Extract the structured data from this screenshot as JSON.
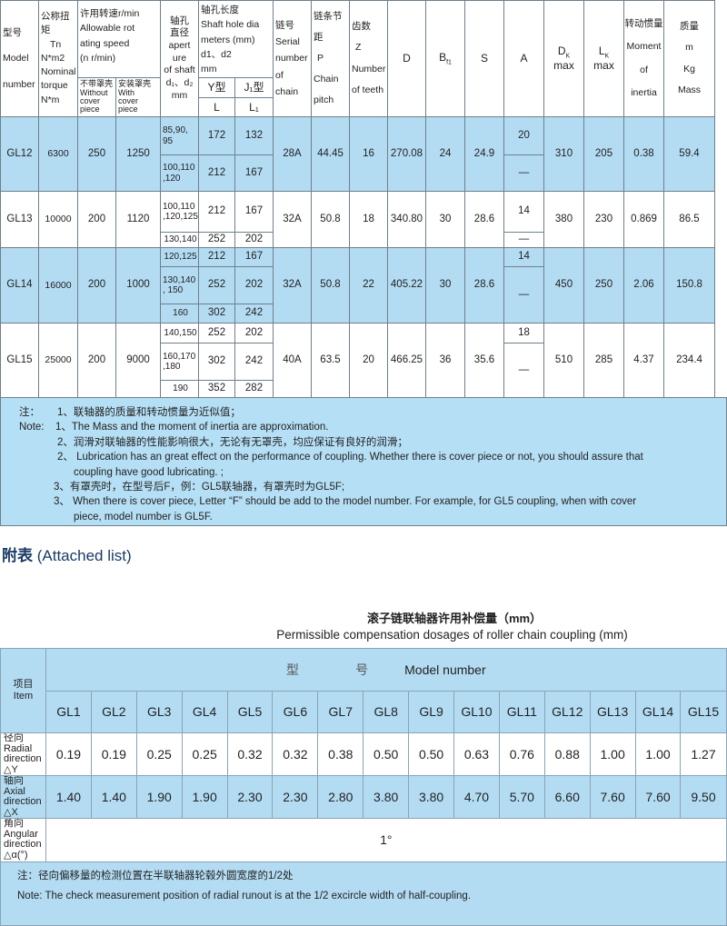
{
  "table1": {
    "header": {
      "model": [
        "型号",
        "Model",
        "number"
      ],
      "torque": [
        "公称扭矩",
        "Tn",
        "N*m2",
        "Nominal",
        "torque",
        "N*m"
      ],
      "speed": [
        "许用转速r/min",
        "Allowable rot",
        "ating speed",
        "(n  r/min)"
      ],
      "speed_without": [
        "不带罩壳",
        "Without",
        "cover",
        "piece"
      ],
      "speed_with": [
        "安装罩壳",
        "With",
        "cover",
        "piece"
      ],
      "aperture": [
        "轴孔",
        "直径",
        "apert",
        "ure",
        "of shaft",
        "d₁、d₂",
        "mm"
      ],
      "shaft_len": [
        "轴孔长度",
        "Shaft hole dia",
        "meters (mm)",
        "d1、d2",
        "mm"
      ],
      "y_type": "Y型",
      "j_type": "J₁型",
      "L": "L",
      "L1": "L₁",
      "chain": [
        "链号",
        "Serial",
        "number",
        "of",
        "chain"
      ],
      "pitch": [
        "链条节距",
        "P",
        "Chain",
        "pitch"
      ],
      "teeth": [
        "齿数",
        "Z",
        "Number",
        "of teeth"
      ],
      "D": "D",
      "B": {
        "main": "B",
        "sub": "f1"
      },
      "S": "S",
      "A": "A",
      "Dk": {
        "main": "D",
        "sub": "K",
        "line2": "max"
      },
      "Lk": {
        "main": "L",
        "sub": "K",
        "line2": "max"
      },
      "inertia": [
        "转动惯量",
        "Moment of",
        "inertia"
      ],
      "mass": [
        "质量",
        "m",
        "Kg",
        "Mass"
      ]
    },
    "rows": [
      {
        "model": "GL12",
        "torque": "6300",
        "speed_without": "250",
        "speed_with": "1250",
        "shafts": [
          {
            "d": "85,90,\n95",
            "L": "172",
            "L1": "132"
          },
          {
            "d": "100,110\n,120",
            "L": "212",
            "L1": "167"
          }
        ],
        "chain": "28A",
        "pitch": "44.45",
        "teeth": "16",
        "D": "270.08",
        "B": "24",
        "S": "24.9",
        "A": [
          "20",
          "—"
        ],
        "Dk": "310",
        "Lk": "205",
        "inertia": "0.38",
        "mass": "59.4"
      },
      {
        "model": "GL13",
        "torque": "10000",
        "speed_without": "200",
        "speed_with": "1120",
        "shafts": [
          {
            "d": "100,110\n,120,125",
            "L": "212",
            "L1": "167"
          },
          {
            "d": "130,140",
            "L": "252",
            "L1": "202"
          }
        ],
        "chain": "32A",
        "pitch": "50.8",
        "teeth": "18",
        "D": "340.80",
        "B": "30",
        "S": "28.6",
        "A": [
          "14",
          "—"
        ],
        "Dk": "380",
        "Lk": "230",
        "inertia": "0.869",
        "mass": "86.5"
      },
      {
        "model": "GL14",
        "torque": "16000",
        "speed_without": "200",
        "speed_with": "1000",
        "shafts": [
          {
            "d": "120,125",
            "L": "212",
            "L1": "167"
          },
          {
            "d": "130,140\n, 150",
            "L": "252",
            "L1": "202"
          },
          {
            "d": "160",
            "L": "302",
            "L1": "242"
          }
        ],
        "chain": "32A",
        "pitch": "50.8",
        "teeth": "22",
        "D": "405.22",
        "B": "30",
        "S": "28.6",
        "A": [
          "14",
          "—"
        ],
        "Dk": "450",
        "Lk": "250",
        "inertia": "2.06",
        "mass": "150.8"
      },
      {
        "model": "GL15",
        "torque": "25000",
        "speed_without": "200",
        "speed_with": "9000",
        "shafts": [
          {
            "d": "140,150",
            "L": "252",
            "L1": "202"
          },
          {
            "d": "160,170\n,180",
            "L": "302",
            "L1": "242"
          },
          {
            "d": "190",
            "L": "352",
            "L1": "282"
          }
        ],
        "chain": "40A",
        "pitch": "63.5",
        "teeth": "20",
        "D": "466.25",
        "B": "36",
        "S": "35.6",
        "A": [
          "18",
          "—"
        ],
        "Dk": "510",
        "Lk": "285",
        "inertia": "4.37",
        "mass": "234.4"
      }
    ]
  },
  "notes": {
    "label_cn": "注：",
    "label_en": "Note:",
    "lines": [
      "1、联轴器的质量和转动惯量为近似值；",
      "1、The Mass and the moment of inertia are approximation.",
      "2、润滑对联轴器的性能影响很大，无论有无罩壳，均应保证有良好的润滑；",
      "2、 Lubrication has an great effect on the performance of coupling. Whether there is cover piece or not, you should assure that",
      "coupling have good lubricating. ;",
      "3、有罩壳时，在型号后F，例：GL5联轴器，有罩壳时为GL5F;",
      "3、 When there is cover piece, Letter “F”  should be add to the model number. For example, for GL5 coupling, when with cover",
      "piece, model number is GL5F."
    ]
  },
  "attached": {
    "cn": "附表",
    "en": "(Attached list)"
  },
  "table2": {
    "title_cn": "滚子链联轴器许用补偿量（mm）",
    "title_en": "Permissible compensation dosages of roller chain coupling (mm)",
    "item_header": [
      "项目",
      "Item"
    ],
    "model_header_cn": "型                号",
    "model_header_en": "Model number",
    "models": [
      "GL1",
      "GL2",
      "GL3",
      "GL4",
      "GL5",
      "GL6",
      "GL7",
      "GL8",
      "GL9",
      "GL10",
      "GL11",
      "GL12",
      "GL13",
      "GL14",
      "GL15"
    ],
    "radial": {
      "label": [
        "径向",
        "Radial",
        "direction",
        "△Y"
      ],
      "values": [
        "0.19",
        "0.19",
        "0.25",
        "0.25",
        "0.32",
        "0.32",
        "0.38",
        "0.50",
        "0.50",
        "0.63",
        "0.76",
        "0.88",
        "1.00",
        "1.00",
        "1.27"
      ]
    },
    "axial": {
      "label": [
        "轴向",
        "Axial",
        "direction",
        "△X"
      ],
      "values": [
        "1.40",
        "1.40",
        "1.90",
        "1.90",
        "2.30",
        "2.30",
        "2.80",
        "3.80",
        "3.80",
        "4.70",
        "5.70",
        "6.60",
        "7.60",
        "7.60",
        "9.50"
      ]
    },
    "angular": {
      "label": [
        "角向",
        "Angular",
        "direction",
        "△α(°)"
      ],
      "value": "1°"
    },
    "note_cn": "注：径向偏移量的检测位置在半联轴器轮毂外圆宽度的1/2处",
    "note_en": "Note: The check measurement position of radial runout is at the 1/2 excircle width of half-coupling."
  },
  "colors": {
    "row_blue": "#b3dcf3",
    "note_blue": "#b5dff5",
    "title_navy": "#1a3b66"
  }
}
